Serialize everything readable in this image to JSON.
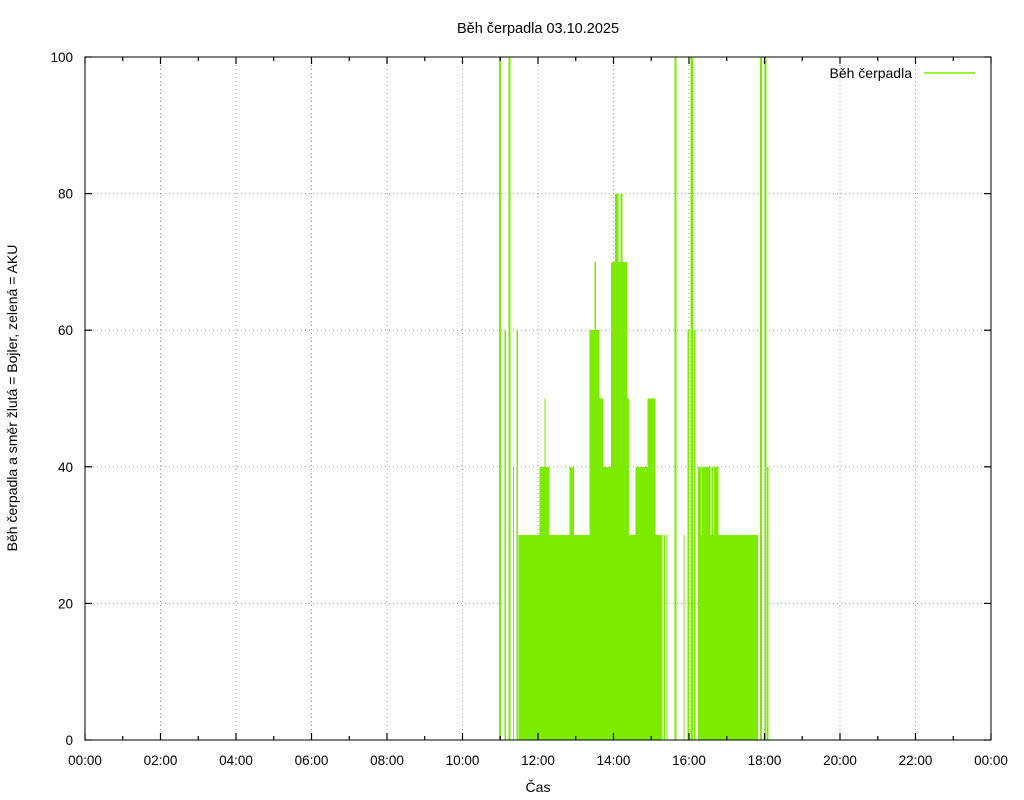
{
  "page": {
    "background": "#ffffff"
  },
  "chart_data": {
    "type": "area",
    "title": "Běh čerpadla 03.10.2025",
    "xlabel": "Čas",
    "ylabel": "Běh čerpadla a směr žlutá = Bojler, zelená = AKU",
    "legend_label": "Běh čerpadla",
    "legend_position": "top-right-inside",
    "series_name": "Běh čerpadla",
    "series_color": "#7CEB00",
    "axis_color": "#000000",
    "grid_color": "#9a9a9a",
    "grid": true,
    "ylim": [
      0,
      100
    ],
    "xlim_hours": [
      0,
      24
    ],
    "y_ticks": [
      0,
      20,
      40,
      60,
      80,
      100
    ],
    "x_major_ticks": {
      "hours": [
        0,
        2,
        4,
        6,
        8,
        10,
        12,
        14,
        16,
        18,
        20,
        22,
        24
      ],
      "labels": [
        "00:00",
        "02:00",
        "04:00",
        "06:00",
        "08:00",
        "10:00",
        "12:00",
        "14:00",
        "16:00",
        "18:00",
        "20:00",
        "22:00",
        "00:00"
      ]
    },
    "x_minor_every_hours": 1,
    "steps_unit": "percent, value holds from listed time until next listed time",
    "steps": [
      [
        "00:00",
        0
      ],
      [
        "10:58",
        100
      ],
      [
        "11:01",
        0
      ],
      [
        "11:07",
        60
      ],
      [
        "11:09",
        0
      ],
      [
        "11:13",
        100
      ],
      [
        "11:16",
        0
      ],
      [
        "11:20",
        40
      ],
      [
        "11:22",
        0
      ],
      [
        "11:26",
        60
      ],
      [
        "11:28",
        0
      ],
      [
        "11:29",
        30
      ],
      [
        "12:02",
        40
      ],
      [
        "12:10",
        50
      ],
      [
        "12:12",
        40
      ],
      [
        "12:18",
        30
      ],
      [
        "12:50",
        40
      ],
      [
        "12:57",
        30
      ],
      [
        "13:22",
        60
      ],
      [
        "13:30",
        70
      ],
      [
        "13:32",
        60
      ],
      [
        "13:38",
        50
      ],
      [
        "13:44",
        40
      ],
      [
        "13:56",
        70
      ],
      [
        "14:02",
        80
      ],
      [
        "14:08",
        70
      ],
      [
        "14:11",
        80
      ],
      [
        "14:14",
        70
      ],
      [
        "14:22",
        50
      ],
      [
        "14:25",
        30
      ],
      [
        "14:35",
        40
      ],
      [
        "14:54",
        50
      ],
      [
        "15:07",
        30
      ],
      [
        "15:18",
        0
      ],
      [
        "15:20",
        30
      ],
      [
        "15:22",
        0
      ],
      [
        "15:24",
        30
      ],
      [
        "15:26",
        0
      ],
      [
        "15:37",
        100
      ],
      [
        "15:40",
        0
      ],
      [
        "15:51",
        30
      ],
      [
        "15:53",
        0
      ],
      [
        "15:58",
        60
      ],
      [
        "16:00",
        0
      ],
      [
        "16:02",
        100
      ],
      [
        "16:06",
        0
      ],
      [
        "16:08",
        60
      ],
      [
        "16:10",
        0
      ],
      [
        "16:14",
        40
      ],
      [
        "16:19",
        30
      ],
      [
        "16:21",
        40
      ],
      [
        "16:34",
        30
      ],
      [
        "16:36",
        40
      ],
      [
        "16:38",
        30
      ],
      [
        "16:40",
        40
      ],
      [
        "16:47",
        30
      ],
      [
        "17:50",
        0
      ],
      [
        "17:53",
        100
      ],
      [
        "17:56",
        0
      ],
      [
        "18:00",
        100
      ],
      [
        "18:03",
        0
      ],
      [
        "18:04",
        40
      ],
      [
        "18:06",
        0
      ]
    ]
  }
}
